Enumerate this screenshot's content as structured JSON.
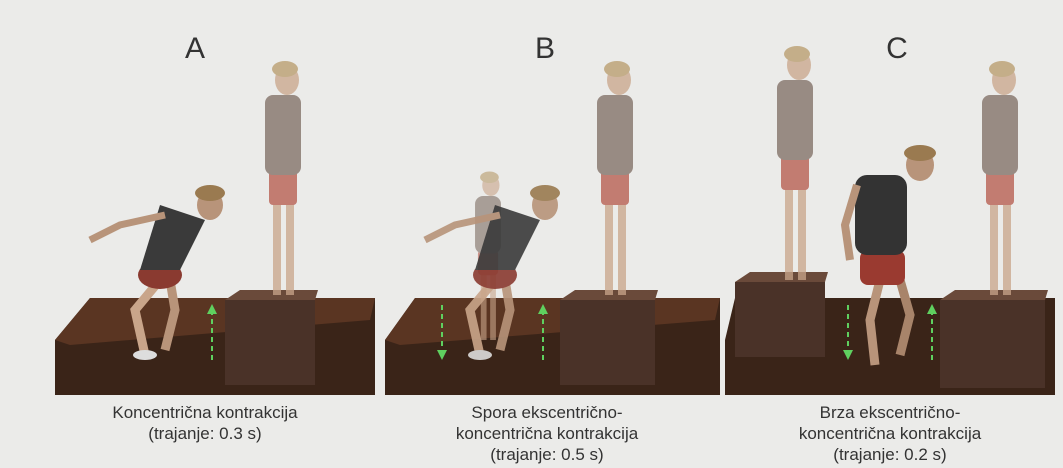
{
  "panels": [
    {
      "label": "A",
      "caption": [
        "Koncentrična kontrakcija",
        "(trajanje: 0.3 s)"
      ]
    },
    {
      "label": "B",
      "caption": [
        "Spora ekscentrično-",
        "koncentrična kontrakcija",
        "(trajanje: 0.5 s)"
      ]
    },
    {
      "label": "C",
      "caption": [
        "Brza ekscentrično-",
        "koncentrična kontrakcija",
        "(trajanje: 0.2 s)"
      ]
    }
  ]
}
